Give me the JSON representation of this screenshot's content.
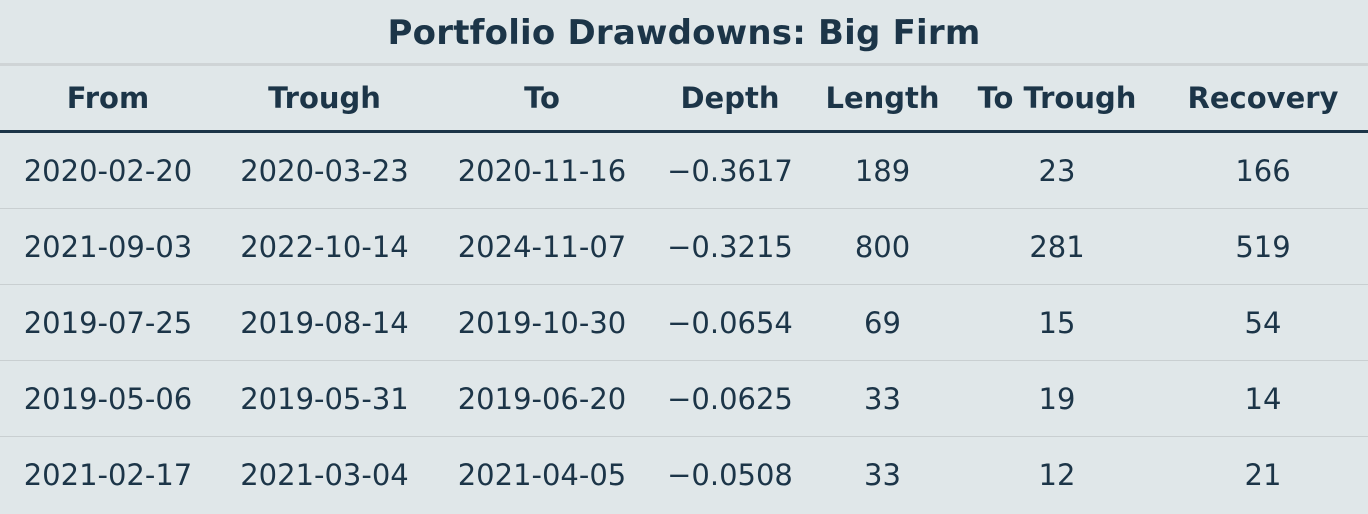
{
  "chart_data": {
    "type": "table",
    "title": "Portfolio Drawdowns: Big Firm",
    "columns": [
      "From",
      "Trough",
      "To",
      "Depth",
      "Length",
      "To Trough",
      "Recovery"
    ],
    "rows": [
      [
        "2020-02-20",
        "2020-03-23",
        "2020-11-16",
        "−0.3617",
        "189",
        "23",
        "166"
      ],
      [
        "2021-09-03",
        "2022-10-14",
        "2024-11-07",
        "−0.3215",
        "800",
        "281",
        "519"
      ],
      [
        "2019-07-25",
        "2019-08-14",
        "2019-10-30",
        "−0.0654",
        "69",
        "15",
        "54"
      ],
      [
        "2019-05-06",
        "2019-05-31",
        "2019-06-20",
        "−0.0625",
        "33",
        "19",
        "14"
      ],
      [
        "2021-02-17",
        "2021-03-04",
        "2021-04-05",
        "−0.0508",
        "33",
        "12",
        "21"
      ]
    ]
  },
  "colors": {
    "background": "#e0e7e9",
    "text": "#1c3548",
    "header_rule": "#1c3548",
    "row_rule": "#c9cfd1"
  }
}
